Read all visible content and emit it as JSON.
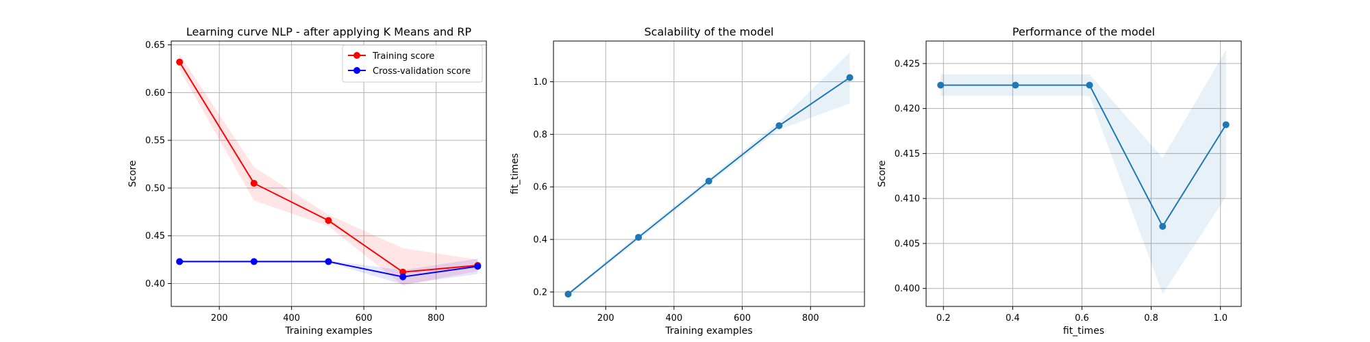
{
  "chart_data": [
    {
      "type": "line",
      "title": "Learning curve NLP - after applying K Means and RP",
      "xlabel": "Training examples",
      "ylabel": "Score",
      "xlim": [
        67,
        939
      ],
      "ylim": [
        0.376,
        0.654
      ],
      "xticks": [
        200,
        400,
        600,
        800
      ],
      "yticks": [
        0.4,
        0.45,
        0.5,
        0.55,
        0.6,
        0.65
      ],
      "ytick_decimals": 2,
      "grid": true,
      "legend": "top-right",
      "x": [
        90,
        296,
        502,
        708,
        915
      ],
      "series": [
        {
          "name": "Training score",
          "color": "#ff0000",
          "values": [
            0.632,
            0.505,
            0.466,
            0.412,
            0.419
          ],
          "band_low": [
            0.624,
            0.487,
            0.46,
            0.398,
            0.413
          ],
          "band_high": [
            0.64,
            0.522,
            0.472,
            0.437,
            0.425
          ]
        },
        {
          "name": "Cross-validation score",
          "color": "#0000ff",
          "values": [
            0.423,
            0.423,
            0.423,
            0.407,
            0.418
          ],
          "band_low": [
            0.422,
            0.422,
            0.422,
            0.399,
            0.41
          ],
          "band_high": [
            0.424,
            0.424,
            0.424,
            0.414,
            0.426
          ]
        }
      ]
    },
    {
      "type": "line",
      "title": "Scalability of the model",
      "xlabel": "Training examples",
      "ylabel": "fit_times",
      "xlim": [
        47,
        958
      ],
      "ylim": [
        0.145,
        1.155
      ],
      "xticks": [
        200,
        400,
        600,
        800
      ],
      "yticks": [
        0.2,
        0.4,
        0.6,
        0.8,
        1.0
      ],
      "ytick_decimals": 1,
      "grid": true,
      "x": [
        90,
        296,
        502,
        708,
        915
      ],
      "series": [
        {
          "name": "",
          "color": "#1f77b4",
          "values": [
            0.192,
            0.408,
            0.622,
            0.833,
            1.016
          ],
          "band_low": [
            0.186,
            0.398,
            0.612,
            0.818,
            0.918
          ],
          "band_high": [
            0.198,
            0.418,
            0.632,
            0.848,
            1.112
          ]
        }
      ]
    },
    {
      "type": "line",
      "title": "Performance of the model",
      "xlabel": "fit_times",
      "ylabel": "Score",
      "xlim": [
        0.15,
        1.06
      ],
      "ylim": [
        0.398,
        0.4275
      ],
      "xticks": [
        0.2,
        0.4,
        0.6,
        0.8,
        1.0
      ],
      "xtick_decimals": 1,
      "yticks": [
        0.4,
        0.405,
        0.41,
        0.415,
        0.42,
        0.425
      ],
      "ytick_decimals": 3,
      "grid": true,
      "x": [
        0.192,
        0.408,
        0.622,
        0.833,
        1.016
      ],
      "series": [
        {
          "name": "",
          "color": "#1f77b4",
          "values": [
            0.4226,
            0.4226,
            0.4226,
            0.4069,
            0.4182
          ],
          "band_low": [
            0.4214,
            0.4214,
            0.4214,
            0.3994,
            0.4102
          ],
          "band_high": [
            0.4238,
            0.4238,
            0.4238,
            0.4145,
            0.4265
          ]
        }
      ]
    }
  ]
}
